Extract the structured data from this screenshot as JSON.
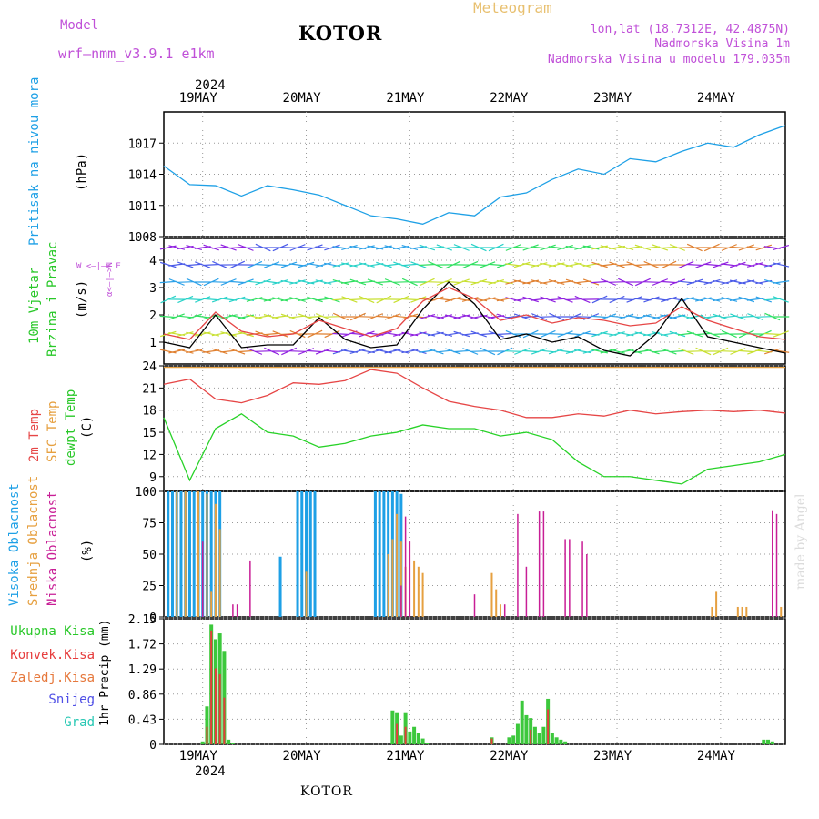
{
  "header": {
    "model_label": "Model",
    "model_name": "wrf–nmm_v3.9.1 e1km",
    "station": "KOTOR",
    "meteogram_label": "Meteogram",
    "lonlat": "lon,lat (18.7312E, 42.4875N)",
    "elevation": "Nadmorska Visina 1m",
    "model_elevation": "Nadmorska Visina u modelu 179.035m",
    "footer_station": "KOTOR",
    "watermark": "made by Angel"
  },
  "colors": {
    "pressure": "#1ea0e6",
    "temp2m": "#e64646",
    "sfc": "#e6a040",
    "dewpt": "#28d228",
    "high_cloud": "#1ea0e6",
    "mid_cloud": "#e6a040",
    "low_cloud": "#c81e96",
    "total_precip": "#3cc83c",
    "conv_precip": "#e63c3c"
  },
  "x_axis": {
    "top_year": "2024",
    "bottom_year": "2024",
    "day_labels": [
      "19MAY",
      "20MAY",
      "21MAY",
      "22MAY",
      "23MAY",
      "24MAY"
    ]
  },
  "chart_data": [
    {
      "type": "line",
      "panel": "pressure",
      "ylabel_lines": [
        "Pritisak na nivou mora",
        "(hPa)"
      ],
      "ytick_labels": [
        "1008",
        "1011",
        "1014",
        "1017"
      ],
      "ylim": [
        1008,
        1020
      ],
      "x_hours": [
        0,
        6,
        12,
        18,
        24,
        30,
        36,
        42,
        48,
        54,
        60,
        66,
        72,
        78,
        84,
        90,
        96,
        102,
        108,
        114,
        120,
        126,
        132,
        138,
        144
      ],
      "series": [
        {
          "values": [
            1014.8,
            1013.0,
            1012.9,
            1011.9,
            1012.9,
            1012.5,
            1012.0,
            1011.0,
            1010.0,
            1009.7,
            1009.2,
            1010.3,
            1010.0,
            1011.8,
            1012.2,
            1013.5,
            1014.5,
            1014.0,
            1015.5,
            1015.2,
            1016.2,
            1017.0,
            1016.6,
            1017.8,
            1018.7
          ]
        }
      ]
    },
    {
      "type": "line",
      "panel": "wind",
      "ylabel_lines": [
        "10m Vjetar",
        "Brzina i Pravac",
        "(m/s)"
      ],
      "compass_label": "W <–|–> E",
      "compass_vertical": "α<–|–>N",
      "ytick_labels": [
        "1",
        "2",
        "3",
        "4"
      ],
      "ylim": [
        0.2,
        4.8
      ],
      "x_hours": [
        0,
        6,
        12,
        18,
        24,
        30,
        36,
        42,
        48,
        54,
        60,
        66,
        72,
        78,
        84,
        90,
        96,
        102,
        108,
        114,
        120,
        126,
        132,
        138,
        144
      ],
      "series": [
        {
          "values": [
            1.0,
            0.8,
            2.0,
            0.8,
            0.9,
            0.9,
            1.9,
            1.1,
            0.8,
            0.9,
            2.2,
            3.2,
            2.4,
            1.1,
            1.3,
            1.0,
            1.2,
            0.7,
            0.5,
            1.3,
            2.6,
            1.2,
            1.0,
            0.8,
            0.6
          ]
        },
        {
          "values": [
            1.3,
            1.1,
            2.1,
            1.4,
            1.2,
            1.3,
            1.8,
            1.5,
            1.2,
            1.5,
            2.5,
            3.0,
            2.6,
            1.8,
            2.0,
            1.7,
            1.9,
            1.8,
            1.6,
            1.7,
            2.3,
            1.8,
            1.5,
            1.2,
            1.1
          ]
        }
      ]
    },
    {
      "type": "line",
      "panel": "temperature",
      "ylabel_lines": [
        "2m Temp",
        "SFC Temp",
        "dewpt Temp",
        "(C)"
      ],
      "ytick_labels": [
        "9",
        "12",
        "15",
        "18",
        "21",
        "24"
      ],
      "ylim": [
        7,
        24
      ],
      "x_hours": [
        0,
        6,
        12,
        18,
        24,
        30,
        36,
        42,
        48,
        54,
        60,
        66,
        72,
        78,
        84,
        90,
        96,
        102,
        108,
        114,
        120,
        126,
        132,
        138,
        144
      ],
      "series": [
        {
          "name": "2m Temp",
          "values": [
            21.5,
            22.2,
            19.5,
            19.0,
            20.0,
            21.7,
            21.5,
            22.0,
            23.5,
            23.0,
            21.0,
            19.2,
            18.5,
            18.0,
            17.0,
            17.0,
            17.5,
            17.2,
            18.0,
            17.5,
            17.8,
            18.0,
            17.8,
            18.0,
            17.6
          ]
        },
        {
          "name": "SFC Temp",
          "values": [
            23.8,
            23.8,
            23.8,
            23.8,
            23.8,
            23.8,
            23.8,
            23.8,
            23.8,
            23.8,
            23.8,
            23.8,
            23.8,
            23.8,
            23.8,
            23.8,
            23.8,
            23.8,
            23.8,
            23.8,
            23.8,
            23.8,
            23.8,
            23.8,
            23.8
          ]
        },
        {
          "name": "dewpt Temp",
          "values": [
            17.0,
            8.5,
            15.5,
            17.5,
            15.0,
            14.5,
            13.0,
            13.5,
            14.5,
            15.0,
            16.0,
            15.5,
            15.5,
            14.5,
            15.0,
            14.0,
            11.0,
            9.0,
            9.0,
            8.5,
            8.0,
            10.0,
            10.5,
            11.0,
            12.0
          ]
        }
      ]
    },
    {
      "type": "bar",
      "panel": "cloud",
      "ylabel_lines": [
        "Visoka Oblacnost",
        "Srednja Oblacnost",
        "Niska Oblacnost",
        "(%)"
      ],
      "ytick_labels": [
        "0",
        "25",
        "50",
        "75",
        "100"
      ],
      "ylim": [
        0,
        100
      ],
      "series": [
        {
          "name": "Visoka Oblacnost",
          "x_hours": [
            1,
            2,
            3,
            4,
            5,
            6,
            7,
            8,
            9,
            10,
            11,
            12,
            13,
            27,
            31,
            32,
            33,
            34,
            35,
            49,
            50,
            51,
            52,
            53,
            54,
            55
          ],
          "values": [
            100,
            100,
            100,
            100,
            100,
            100,
            100,
            100,
            100,
            100,
            100,
            100,
            100,
            48,
            100,
            100,
            100,
            100,
            100,
            100,
            100,
            100,
            100,
            100,
            100,
            98
          ]
        },
        {
          "name": "Srednja Oblacnost",
          "x_hours": [
            3,
            5,
            8,
            10,
            11,
            12,
            13,
            33,
            52,
            53,
            54,
            55,
            56,
            58,
            59,
            60,
            76,
            77,
            78,
            127,
            128,
            133,
            134,
            135,
            143
          ],
          "values": [
            100,
            100,
            100,
            98,
            20,
            90,
            70,
            36,
            50,
            62,
            82,
            60,
            40,
            45,
            40,
            35,
            35,
            22,
            10,
            8,
            20,
            8,
            8,
            8,
            8
          ]
        },
        {
          "name": "Niska Oblacnost",
          "x_hours": [
            9,
            16,
            17,
            20,
            55,
            56,
            57,
            72,
            79,
            82,
            84,
            87,
            88,
            93,
            94,
            97,
            98,
            141,
            142
          ],
          "values": [
            60,
            10,
            10,
            45,
            25,
            80,
            60,
            18,
            10,
            82,
            40,
            84,
            84,
            62,
            62,
            60,
            50,
            85,
            82
          ]
        }
      ]
    },
    {
      "type": "bar",
      "panel": "precip",
      "ylabel_lines": [
        "1hr Precip (mm)"
      ],
      "legend_labels": [
        "Ukupna Kisa",
        "Konvek.Kisa",
        "Zaledj.Kisa",
        "Snijeg",
        "Grad"
      ],
      "ytick_labels": [
        "0",
        "0.43",
        "0.86",
        "1.29",
        "1.72",
        "2.15"
      ],
      "ylim": [
        0,
        2.15
      ],
      "series": [
        {
          "name": "Ukupna Kisa",
          "x_hours": [
            9,
            10,
            11,
            12,
            13,
            14,
            15,
            16,
            53,
            54,
            55,
            56,
            57,
            58,
            59,
            60,
            61,
            76,
            80,
            81,
            82,
            83,
            84,
            85,
            86,
            87,
            88,
            89,
            90,
            91,
            92,
            93,
            139,
            140,
            141
          ],
          "values": [
            0.05,
            0.65,
            2.05,
            1.8,
            1.9,
            1.6,
            0.08,
            0.03,
            0.58,
            0.55,
            0.15,
            0.55,
            0.22,
            0.3,
            0.2,
            0.1,
            0.03,
            0.12,
            0.12,
            0.15,
            0.35,
            0.75,
            0.5,
            0.45,
            0.3,
            0.2,
            0.3,
            0.78,
            0.2,
            0.12,
            0.08,
            0.05,
            0.08,
            0.08,
            0.05
          ]
        },
        {
          "name": "Konvek.Kisa",
          "x_hours": [
            10,
            11,
            12,
            13,
            14,
            54,
            56,
            76,
            85,
            89
          ],
          "values": [
            0.3,
            1.95,
            1.3,
            1.2,
            0.8,
            0.35,
            0.3,
            0.1,
            0.25,
            0.6
          ]
        }
      ]
    }
  ]
}
